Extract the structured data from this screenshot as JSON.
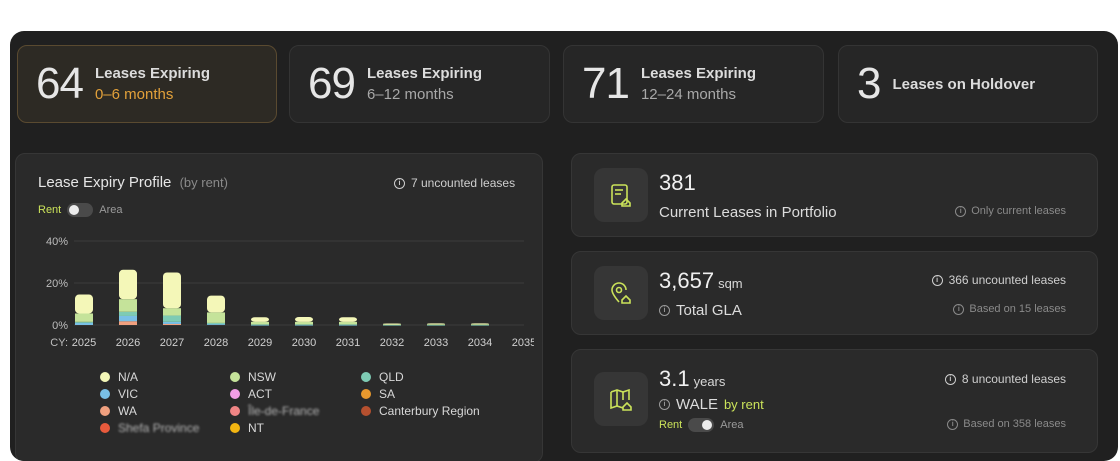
{
  "kpis": [
    {
      "value": "64",
      "title": "Leases Expiring",
      "sub": "0–6 months"
    },
    {
      "value": "69",
      "title": "Leases Expiring",
      "sub": "6–12 months"
    },
    {
      "value": "71",
      "title": "Leases Expiring",
      "sub": "12–24 months"
    },
    {
      "value": "3",
      "title": "Leases on Holdover",
      "sub": ""
    }
  ],
  "chart_panel": {
    "title": "Lease Expiry Profile",
    "title_suffix": "(by rent)",
    "uncounted": "7 uncounted leases",
    "toggle_on": "Rent",
    "toggle_off": "Area"
  },
  "chart_data": {
    "type": "bar",
    "stacked": true,
    "xlabel_prefix": "CY:",
    "categories": [
      "2025",
      "2026",
      "2027",
      "2028",
      "2029",
      "2030",
      "2031",
      "2032",
      "2033",
      "2034",
      "2035"
    ],
    "y_ticks": [
      "40%",
      "20%",
      "0%"
    ],
    "ylim": [
      0,
      40
    ],
    "series": [
      {
        "name": "N/A",
        "color": "#f4f7b8",
        "values": [
          9,
          14,
          17,
          8,
          2.2,
          2.3,
          2.2,
          0.3,
          0.4,
          0.4,
          0
        ]
      },
      {
        "name": "NSW",
        "color": "#c5e39a",
        "values": [
          4,
          6,
          3.5,
          5,
          1.2,
          1.2,
          1.2,
          0.3,
          0.3,
          0.3,
          0
        ]
      },
      {
        "name": "QLD",
        "color": "#7ecbb4",
        "values": [
          0.5,
          2,
          3,
          0.6,
          0.2,
          0.2,
          0.2,
          0.1,
          0.1,
          0.1,
          0
        ]
      },
      {
        "name": "VIC",
        "color": "#79c0e6",
        "values": [
          1,
          2.5,
          1,
          0.4,
          0.1,
          0.1,
          0.1,
          0,
          0,
          0,
          0
        ]
      },
      {
        "name": "WA",
        "color": "#f0a07f",
        "values": [
          0,
          1.8,
          0.5,
          0,
          0,
          0,
          0,
          0,
          0,
          0,
          0
        ]
      }
    ],
    "legend": [
      {
        "name": "N/A",
        "color": "#f4f7b8",
        "blur": false
      },
      {
        "name": "NSW",
        "color": "#c5e39a",
        "blur": false
      },
      {
        "name": "QLD",
        "color": "#7ecbb4",
        "blur": false
      },
      {
        "name": "VIC",
        "color": "#79c0e6",
        "blur": false
      },
      {
        "name": "ACT",
        "color": "#f39ee6",
        "blur": false
      },
      {
        "name": "SA",
        "color": "#e8992e",
        "blur": false
      },
      {
        "name": "WA",
        "color": "#f0a07f",
        "blur": false
      },
      {
        "name": "Île-de-France",
        "color": "#f08585",
        "blur": true
      },
      {
        "name": "Canterbury Region",
        "color": "#b5502f",
        "blur": false
      },
      {
        "name": "Shefa Province",
        "color": "#e85a3c",
        "blur": true
      },
      {
        "name": "NT",
        "color": "#f2b511",
        "blur": false
      }
    ]
  },
  "card_leases": {
    "value": "381",
    "label": "Current Leases in Portfolio",
    "note": "Only current leases"
  },
  "card_gla": {
    "value": "3,657",
    "unit": "sqm",
    "label": "Total GLA",
    "uncounted": "366 uncounted leases",
    "note": "Based on 15 leases"
  },
  "card_wale": {
    "value": "3.1",
    "unit": "years",
    "label": "WALE",
    "label_suffix": "by rent",
    "uncounted": "8 uncounted leases",
    "note": "Based on 358 leases",
    "toggle_on": "Rent",
    "toggle_off": "Area"
  },
  "colors": {
    "accent": "#cbe35a",
    "warning": "#e3a13a",
    "panel": "#2a2a2a"
  }
}
